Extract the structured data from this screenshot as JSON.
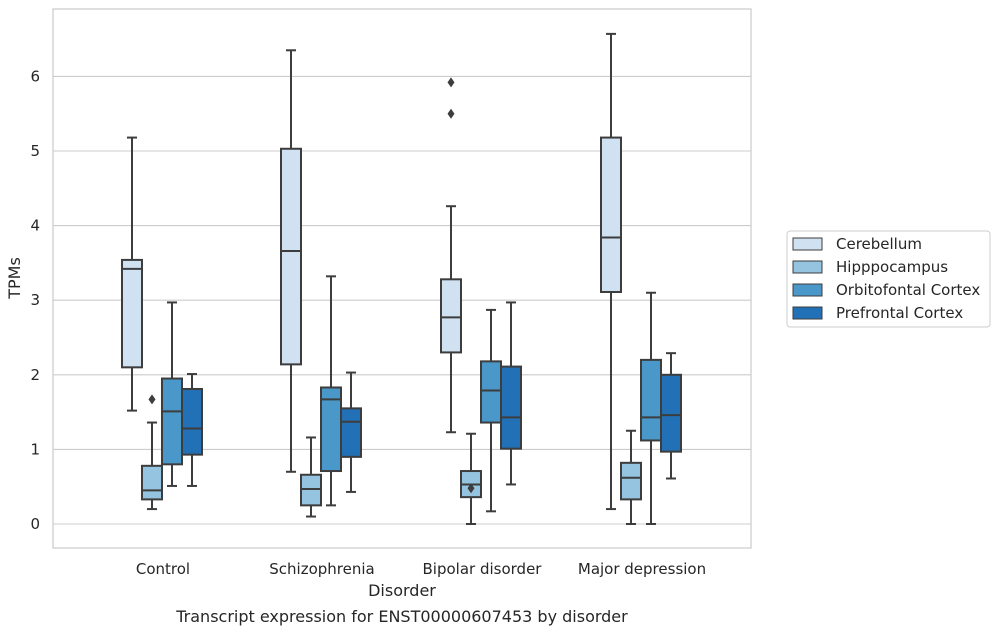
{
  "chart_data": {
    "type": "box",
    "title": "Transcript expression for ENST00000607453 by disorder",
    "xlabel": "Disorder",
    "ylabel": "TPMs",
    "ylim": [
      -0.32,
      6.9
    ],
    "yticks": [
      0,
      1,
      2,
      3,
      4,
      5,
      6
    ],
    "grid": "horizontal",
    "legend_position": "right",
    "categories": [
      "Control",
      "Schizophrenia",
      "Bipolar disorder",
      "Major depression"
    ],
    "series": [
      {
        "name": "Cerebellum",
        "color": "#d0e1f2",
        "boxes": [
          {
            "whislo": 1.52,
            "q1": 2.1,
            "med": 3.42,
            "q3": 3.54,
            "whishi": 5.18,
            "fliers": []
          },
          {
            "whislo": 0.7,
            "q1": 2.14,
            "med": 3.66,
            "q3": 5.03,
            "whishi": 6.35,
            "fliers": []
          },
          {
            "whislo": 1.23,
            "q1": 2.3,
            "med": 2.77,
            "q3": 3.28,
            "whishi": 4.26,
            "fliers": [
              5.5,
              5.92
            ]
          },
          {
            "whislo": 0.2,
            "q1": 3.11,
            "med": 3.84,
            "q3": 5.18,
            "whishi": 6.57,
            "fliers": []
          }
        ]
      },
      {
        "name": "Hipppocampus",
        "color": "#94c4df",
        "boxes": [
          {
            "whislo": 0.2,
            "q1": 0.33,
            "med": 0.45,
            "q3": 0.78,
            "whishi": 1.36,
            "fliers": [
              1.67
            ]
          },
          {
            "whislo": 0.1,
            "q1": 0.25,
            "med": 0.47,
            "q3": 0.66,
            "whishi": 1.16,
            "fliers": []
          },
          {
            "whislo": 0.0,
            "q1": 0.36,
            "med": 0.53,
            "q3": 0.71,
            "whishi": 1.21,
            "fliers": [
              0.48
            ]
          },
          {
            "whislo": 0.0,
            "q1": 0.33,
            "med": 0.62,
            "q3": 0.82,
            "whishi": 1.25,
            "fliers": []
          }
        ]
      },
      {
        "name": "Orbitofontal Cortex",
        "color": "#4a98c9",
        "boxes": [
          {
            "whislo": 0.51,
            "q1": 0.8,
            "med": 1.51,
            "q3": 1.95,
            "whishi": 2.97,
            "fliers": []
          },
          {
            "whislo": 0.25,
            "q1": 0.71,
            "med": 1.67,
            "q3": 1.83,
            "whishi": 3.32,
            "fliers": []
          },
          {
            "whislo": 0.17,
            "q1": 1.36,
            "med": 1.79,
            "q3": 2.18,
            "whishi": 2.87,
            "fliers": []
          },
          {
            "whislo": 0.0,
            "q1": 1.12,
            "med": 1.43,
            "q3": 2.2,
            "whishi": 3.1,
            "fliers": []
          }
        ]
      },
      {
        "name": "Prefrontal Cortex",
        "color": "#2270b5",
        "boxes": [
          {
            "whislo": 0.51,
            "q1": 0.93,
            "med": 1.28,
            "q3": 1.81,
            "whishi": 2.01,
            "fliers": []
          },
          {
            "whislo": 0.43,
            "q1": 0.9,
            "med": 1.37,
            "q3": 1.55,
            "whishi": 2.03,
            "fliers": []
          },
          {
            "whislo": 0.53,
            "q1": 1.01,
            "med": 1.43,
            "q3": 2.11,
            "whishi": 2.97,
            "fliers": []
          },
          {
            "whislo": 0.61,
            "q1": 0.97,
            "med": 1.46,
            "q3": 2.0,
            "whishi": 2.29,
            "fliers": []
          }
        ]
      }
    ]
  }
}
